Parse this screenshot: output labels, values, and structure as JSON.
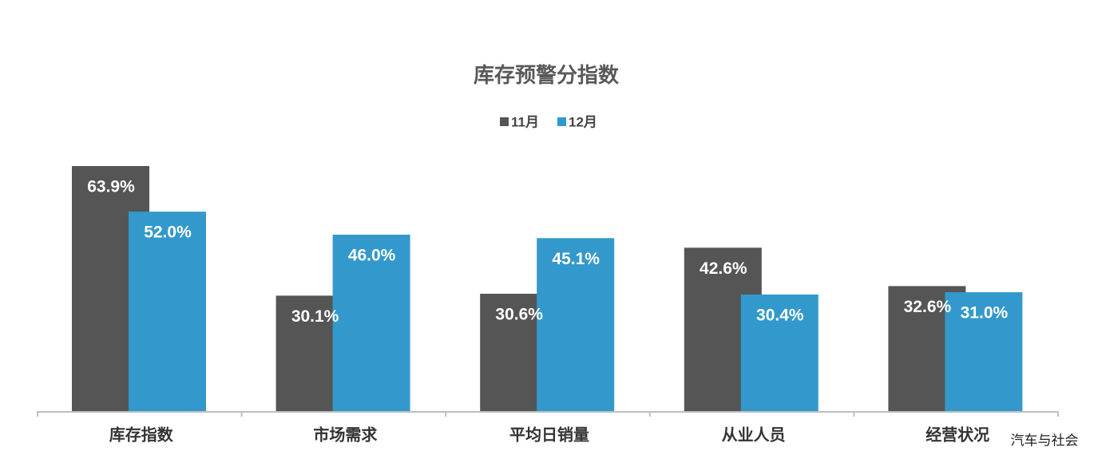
{
  "chart_data": {
    "type": "bar",
    "title": "库存预警分指数",
    "categories": [
      "库存指数",
      "市场需求",
      "平均日销量",
      "从业人员",
      "经营状况"
    ],
    "series": [
      {
        "name": "11月",
        "color": "#555555",
        "values": [
          63.9,
          30.1,
          30.6,
          42.6,
          32.6
        ],
        "value_labels": [
          "63.9%",
          "30.1%",
          "30.6%",
          "42.6%",
          "32.6%"
        ]
      },
      {
        "name": "12月",
        "color": "#3399cc",
        "values": [
          52.0,
          46.0,
          45.1,
          30.4,
          31.0
        ],
        "value_labels": [
          "52.0%",
          "46.0%",
          "45.1%",
          "30.4%",
          "31.0%"
        ]
      }
    ],
    "legend": "top",
    "watermark": "汽车与社会"
  }
}
